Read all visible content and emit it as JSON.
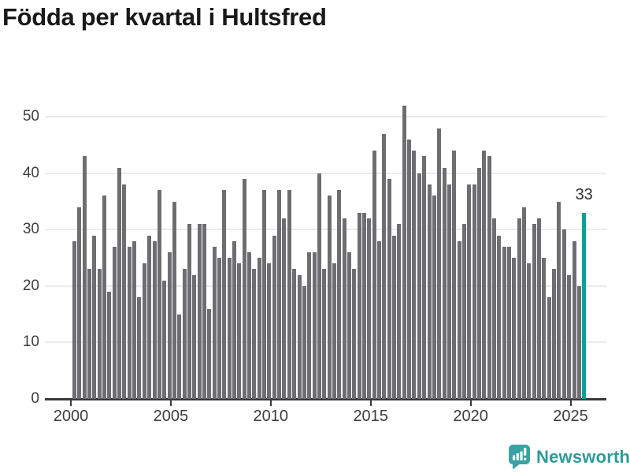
{
  "title": "Födda per kvartal i Hultsfred",
  "logo": {
    "text": "Newsworthy"
  },
  "colors": {
    "bar": "#6e6e72",
    "highlight": "#00a39a",
    "gridline": "#ebebeb",
    "axis": "#3a3a3a",
    "title_text": "#191919",
    "logo_teal": "#2f9b9b"
  },
  "chart_data": {
    "type": "bar",
    "title": "Födda per kvartal i Hultsfred",
    "frequency": "quarterly",
    "x_start": "2000-Q1",
    "x_end": "2025-Q3",
    "x_tick_labels": [
      "2000",
      "2005",
      "2010",
      "2015",
      "2020",
      "2025"
    ],
    "x_tick_every_n_bars": 20,
    "y_ticks": [
      0,
      10,
      20,
      30,
      40,
      50
    ],
    "ylim": [
      0,
      55
    ],
    "grid": "horizontal",
    "legend": "none",
    "values": [
      28,
      34,
      43,
      23,
      29,
      23,
      36,
      19,
      27,
      41,
      38,
      27,
      28,
      18,
      24,
      29,
      28,
      37,
      21,
      26,
      35,
      15,
      23,
      31,
      22,
      31,
      31,
      16,
      27,
      25,
      37,
      25,
      28,
      24,
      39,
      26,
      23,
      25,
      37,
      24,
      29,
      37,
      32,
      37,
      23,
      22,
      20,
      26,
      26,
      40,
      23,
      36,
      24,
      37,
      32,
      26,
      23,
      33,
      33,
      32,
      44,
      28,
      47,
      39,
      29,
      31,
      52,
      46,
      44,
      40,
      43,
      38,
      36,
      48,
      41,
      38,
      44,
      28,
      31,
      38,
      38,
      41,
      44,
      43,
      32,
      29,
      27,
      27,
      25,
      32,
      34,
      24,
      31,
      32,
      25,
      18,
      23,
      35,
      30,
      22,
      28,
      20,
      33
    ],
    "highlight": {
      "index": 102,
      "value": 33,
      "label": "33"
    }
  }
}
